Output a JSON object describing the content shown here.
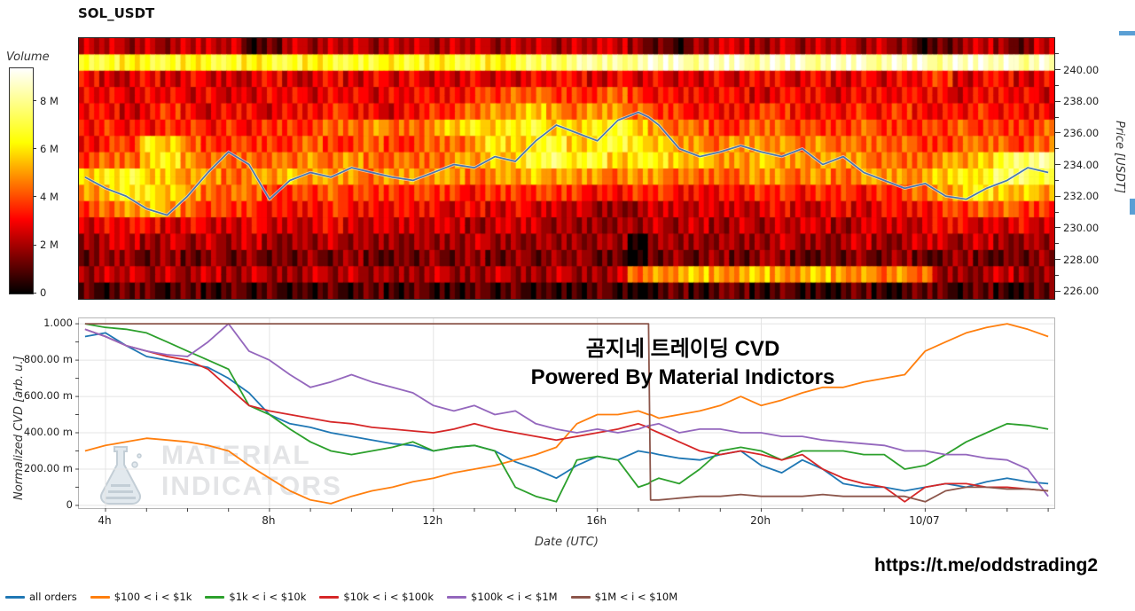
{
  "page": {
    "title": "SOL_USDT",
    "overlay_line1": "곰지네 트레이딩 CVD",
    "overlay_line2": "Powered By Material Indictors",
    "watermark_line1": "MATERIAL",
    "watermark_line2": "INDICATORS",
    "telegram_link": "https://t.me/oddstrading2"
  },
  "chart_data": [
    {
      "type": "heatmap",
      "title": "SOL_USDT",
      "ylabel_right": "Price [USDT]",
      "price_range": [
        225.5,
        242.0
      ],
      "xlim": [
        3.35,
        27.15
      ],
      "colorbar": {
        "label": "Volume",
        "vmax": 9400000,
        "ticks": [
          {
            "value": 0,
            "label": "0"
          },
          {
            "value": 2000000,
            "label": "2 M"
          },
          {
            "value": 4000000,
            "label": "4 M"
          },
          {
            "value": 6000000,
            "label": "6 M"
          },
          {
            "value": 8000000,
            "label": "8 M"
          }
        ]
      },
      "price_ticks": [
        {
          "value": 226,
          "label": "226.00"
        },
        {
          "value": 228,
          "label": "228.00"
        },
        {
          "value": 230,
          "label": "230.00"
        },
        {
          "value": 232,
          "label": "232.00"
        },
        {
          "value": 234,
          "label": "234.00"
        },
        {
          "value": 236,
          "label": "236.00"
        },
        {
          "value": 238,
          "label": "238.00"
        },
        {
          "value": 240,
          "label": "240.00"
        }
      ],
      "rows_hex": [
        "443434441243443443443443444321344343443431234324",
        "bbabbabbabbabbbababbabccddddeedeedeedeedeedeeede",
        "544545444544545454454455545454454554545455645545",
        "554554544554554555566776667655555455545555545554",
        "554565455455655456678898788766555665556565556555",
        "5655665656667787789a9ab99ab987766776667666676667",
        "566a9766666766766778a9ab9aba98878887877776677767",
        "6779a87777787877778899bcab9aa9988988888777889bcd",
        "9ab9988788988878888788988878877778878788889aaccb",
        "89aa9877766676666665666665566555566566566789a998",
        "678987666555655555454544433344444454454555667766",
        "455545445444544444434443333343434344434444554454",
        "344343434333433333343333333033333343334334434333",
        "233232323223232223232323322023232332223232232223",
        "344343434334343334334334334788988988988787333433",
        "212212121211212121121211121012122121112112212112"
      ],
      "price_line": {
        "name": "price",
        "color": "#4678b2",
        "x": [
          3.5,
          4,
          4.5,
          5,
          5.5,
          6,
          6.5,
          7,
          7.5,
          8,
          8.5,
          9,
          9.5,
          10,
          10.5,
          11,
          11.5,
          12,
          12.5,
          13,
          13.5,
          14,
          14.5,
          15,
          15.5,
          16,
          16.5,
          17,
          17.25,
          17.3,
          17.5,
          18,
          18.5,
          19,
          19.5,
          20,
          20.5,
          21,
          21.5,
          22,
          22.5,
          23,
          23.5,
          24,
          24.5,
          25,
          25.5,
          26,
          26.5,
          27
        ],
        "values": [
          233.2,
          232.5,
          232.0,
          231.2,
          230.8,
          232.0,
          233.5,
          234.8,
          234.0,
          231.8,
          233.0,
          233.5,
          233.2,
          233.8,
          233.5,
          233.2,
          233.0,
          233.5,
          234.0,
          233.8,
          234.5,
          234.2,
          235.5,
          236.5,
          236.0,
          235.5,
          236.8,
          237.3,
          237.0,
          236.9,
          236.5,
          235.0,
          234.5,
          234.8,
          235.2,
          234.8,
          234.5,
          235.0,
          234.0,
          234.5,
          233.5,
          233.0,
          232.5,
          232.8,
          232.0,
          231.8,
          232.5,
          233.0,
          233.8,
          233.5
        ]
      }
    },
    {
      "type": "line",
      "xlabel": "Date (UTC)",
      "ylabel": "Normalized CVD [arb. u.]",
      "xlim": [
        3.35,
        27.15
      ],
      "ylim": [
        -0.015,
        1.03
      ],
      "x_ticks": [
        {
          "value": 4,
          "label": "4h"
        },
        {
          "value": 8,
          "label": "8h"
        },
        {
          "value": 12,
          "label": "12h"
        },
        {
          "value": 16,
          "label": "16h"
        },
        {
          "value": 20,
          "label": "20h"
        },
        {
          "value": 24,
          "label": "10/07"
        }
      ],
      "y_ticks": [
        {
          "value": 0,
          "label": "0"
        },
        {
          "value": 0.2,
          "label": "200.00 m"
        },
        {
          "value": 0.4,
          "label": "400.00 m"
        },
        {
          "value": 0.6,
          "label": "600.00 m"
        },
        {
          "value": 0.8,
          "label": "800.00 m"
        },
        {
          "value": 1.0,
          "label": "1.000"
        }
      ],
      "x": [
        3.5,
        4,
        4.5,
        5,
        5.5,
        6,
        6.5,
        7,
        7.5,
        8,
        8.5,
        9,
        9.5,
        10,
        10.5,
        11,
        11.5,
        12,
        12.5,
        13,
        13.5,
        14,
        14.5,
        15,
        15.5,
        16,
        16.5,
        17,
        17.25,
        17.3,
        17.5,
        18,
        18.5,
        19,
        19.5,
        20,
        20.5,
        21,
        21.5,
        22,
        22.5,
        23,
        23.5,
        24,
        24.5,
        25,
        25.5,
        26,
        26.5,
        27
      ],
      "series": [
        {
          "name": "all orders",
          "color": "#1f77b4",
          "values": [
            0.93,
            0.95,
            0.88,
            0.82,
            0.8,
            0.78,
            0.76,
            0.7,
            0.62,
            0.5,
            0.45,
            0.43,
            0.4,
            0.38,
            0.36,
            0.34,
            0.33,
            0.3,
            0.32,
            0.33,
            0.3,
            0.24,
            0.2,
            0.15,
            0.22,
            0.27,
            0.25,
            0.3,
            0.29,
            0.29,
            0.28,
            0.26,
            0.25,
            0.28,
            0.3,
            0.22,
            0.18,
            0.25,
            0.2,
            0.12,
            0.1,
            0.1,
            0.08,
            0.1,
            0.12,
            0.1,
            0.13,
            0.15,
            0.13,
            0.12
          ]
        },
        {
          "name": "$100 < i < $1k",
          "color": "#ff7f0e",
          "values": [
            0.3,
            0.33,
            0.35,
            0.37,
            0.36,
            0.35,
            0.33,
            0.3,
            0.22,
            0.15,
            0.08,
            0.03,
            0.01,
            0.05,
            0.08,
            0.1,
            0.13,
            0.15,
            0.18,
            0.2,
            0.22,
            0.25,
            0.28,
            0.32,
            0.45,
            0.5,
            0.5,
            0.52,
            0.5,
            0.5,
            0.48,
            0.5,
            0.52,
            0.55,
            0.6,
            0.55,
            0.58,
            0.62,
            0.65,
            0.65,
            0.68,
            0.7,
            0.72,
            0.85,
            0.9,
            0.95,
            0.98,
            1.0,
            0.97,
            0.93
          ]
        },
        {
          "name": "$1k < i < $10k",
          "color": "#2ca02c",
          "values": [
            1.0,
            0.98,
            0.97,
            0.95,
            0.9,
            0.85,
            0.8,
            0.75,
            0.55,
            0.5,
            0.42,
            0.35,
            0.3,
            0.28,
            0.3,
            0.32,
            0.35,
            0.3,
            0.32,
            0.33,
            0.3,
            0.1,
            0.05,
            0.02,
            0.25,
            0.27,
            0.25,
            0.1,
            0.12,
            0.13,
            0.15,
            0.12,
            0.2,
            0.3,
            0.32,
            0.3,
            0.25,
            0.3,
            0.3,
            0.3,
            0.28,
            0.28,
            0.2,
            0.22,
            0.28,
            0.35,
            0.4,
            0.45,
            0.44,
            0.42
          ]
        },
        {
          "name": "$10k < i < $100k",
          "color": "#d62728",
          "values": [
            0.97,
            0.93,
            0.88,
            0.85,
            0.82,
            0.8,
            0.75,
            0.65,
            0.55,
            0.52,
            0.5,
            0.48,
            0.46,
            0.45,
            0.43,
            0.42,
            0.41,
            0.4,
            0.42,
            0.45,
            0.42,
            0.4,
            0.38,
            0.36,
            0.38,
            0.4,
            0.42,
            0.45,
            0.43,
            0.42,
            0.4,
            0.35,
            0.3,
            0.28,
            0.3,
            0.28,
            0.25,
            0.28,
            0.2,
            0.15,
            0.12,
            0.1,
            0.02,
            0.1,
            0.12,
            0.12,
            0.1,
            0.1,
            0.09,
            0.08
          ]
        },
        {
          "name": "$100k < i < $1M",
          "color": "#9467bd",
          "values": [
            0.97,
            0.93,
            0.88,
            0.85,
            0.83,
            0.82,
            0.9,
            1.0,
            0.85,
            0.8,
            0.72,
            0.65,
            0.68,
            0.72,
            0.68,
            0.65,
            0.62,
            0.55,
            0.52,
            0.55,
            0.5,
            0.52,
            0.45,
            0.42,
            0.4,
            0.42,
            0.4,
            0.42,
            0.44,
            0.44,
            0.45,
            0.4,
            0.42,
            0.42,
            0.4,
            0.4,
            0.38,
            0.38,
            0.36,
            0.35,
            0.34,
            0.33,
            0.3,
            0.3,
            0.28,
            0.28,
            0.26,
            0.25,
            0.2,
            0.05
          ]
        },
        {
          "name": "$1M < i < $10M",
          "color": "#8c564b",
          "values": [
            1.0,
            1.0,
            1.0,
            1.0,
            1.0,
            1.0,
            1.0,
            1.0,
            1.0,
            1.0,
            1.0,
            1.0,
            1.0,
            1.0,
            1.0,
            1.0,
            1.0,
            1.0,
            1.0,
            1.0,
            1.0,
            1.0,
            1.0,
            1.0,
            1.0,
            1.0,
            1.0,
            1.0,
            1.0,
            0.03,
            0.03,
            0.04,
            0.05,
            0.05,
            0.06,
            0.05,
            0.05,
            0.05,
            0.06,
            0.05,
            0.05,
            0.05,
            0.05,
            0.02,
            0.08,
            0.1,
            0.1,
            0.09,
            0.09,
            0.08
          ]
        }
      ]
    }
  ]
}
